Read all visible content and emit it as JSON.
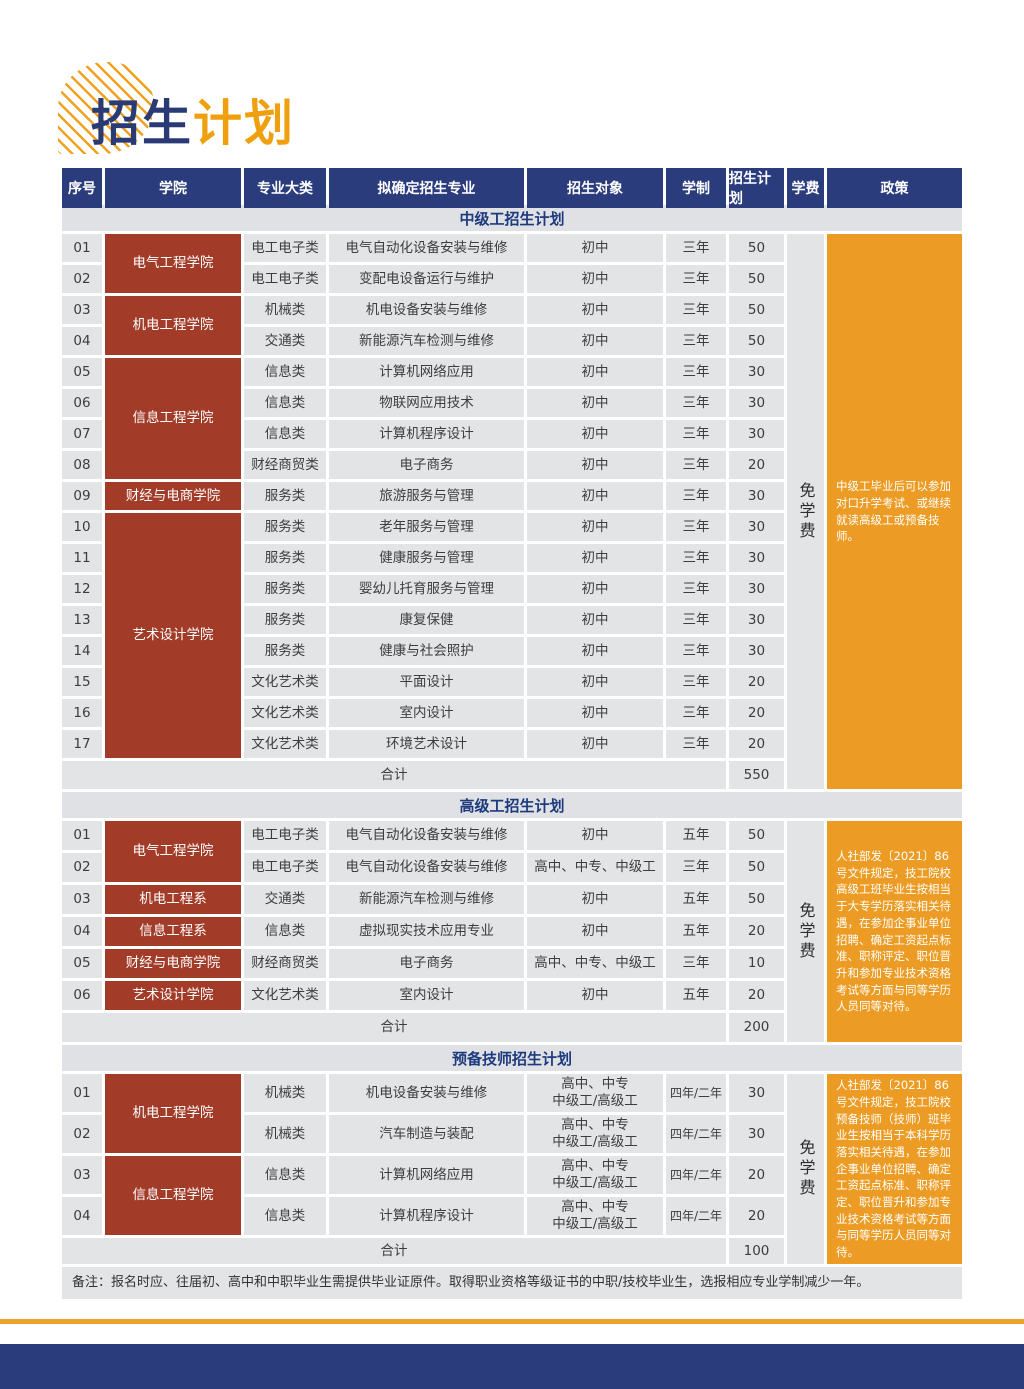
{
  "page": {
    "title_part1": "招生",
    "title_part2": "计划"
  },
  "colors": {
    "navy": "#2B3C7C",
    "brick_red": "#A23B28",
    "orange": "#EC9C24",
    "cell_gray": "#E2E4E6",
    "title_orange": "#F0A00F"
  },
  "table": {
    "headers": [
      "序号",
      "学院",
      "专业大类",
      "拟确定招生专业",
      "招生对象",
      "学制",
      "招生计划",
      "学费",
      "政策"
    ]
  },
  "sections": [
    {
      "title": "中级工招生计划",
      "tuition": "免学费",
      "policy": "中级工毕业后可以参加对口升学考试、或继续就读高级工或预备技师。",
      "total_label": "合计",
      "total": "550",
      "colleges": [
        {
          "name": "电气工程学院",
          "span": 2
        },
        {
          "name": "机电工程学院",
          "span": 2
        },
        {
          "name": "信息工程学院",
          "span": 4
        },
        {
          "name": "财经与电商学院",
          "span": 1
        },
        {
          "name": "艺术设计学院",
          "span": 8
        }
      ],
      "rows": [
        {
          "no": "01",
          "category": "电工电子类",
          "major": "电气自动化设备安装与维修",
          "target": "初中",
          "duration": "三年",
          "plan": "50"
        },
        {
          "no": "02",
          "category": "电工电子类",
          "major": "变配电设备运行与维护",
          "target": "初中",
          "duration": "三年",
          "plan": "50"
        },
        {
          "no": "03",
          "category": "机械类",
          "major": "机电设备安装与维修",
          "target": "初中",
          "duration": "三年",
          "plan": "50"
        },
        {
          "no": "04",
          "category": "交通类",
          "major": "新能源汽车检测与维修",
          "target": "初中",
          "duration": "三年",
          "plan": "50"
        },
        {
          "no": "05",
          "category": "信息类",
          "major": "计算机网络应用",
          "target": "初中",
          "duration": "三年",
          "plan": "30"
        },
        {
          "no": "06",
          "category": "信息类",
          "major": "物联网应用技术",
          "target": "初中",
          "duration": "三年",
          "plan": "30"
        },
        {
          "no": "07",
          "category": "信息类",
          "major": "计算机程序设计",
          "target": "初中",
          "duration": "三年",
          "plan": "30"
        },
        {
          "no": "08",
          "category": "财经商贸类",
          "major": "电子商务",
          "target": "初中",
          "duration": "三年",
          "plan": "20"
        },
        {
          "no": "09",
          "category": "服务类",
          "major": "旅游服务与管理",
          "target": "初中",
          "duration": "三年",
          "plan": "30"
        },
        {
          "no": "10",
          "category": "服务类",
          "major": "老年服务与管理",
          "target": "初中",
          "duration": "三年",
          "plan": "30"
        },
        {
          "no": "11",
          "category": "服务类",
          "major": "健康服务与管理",
          "target": "初中",
          "duration": "三年",
          "plan": "30"
        },
        {
          "no": "12",
          "category": "服务类",
          "major": "婴幼儿托育服务与管理",
          "target": "初中",
          "duration": "三年",
          "plan": "30"
        },
        {
          "no": "13",
          "category": "服务类",
          "major": "康复保健",
          "target": "初中",
          "duration": "三年",
          "plan": "30"
        },
        {
          "no": "14",
          "category": "服务类",
          "major": "健康与社会照护",
          "target": "初中",
          "duration": "三年",
          "plan": "30"
        },
        {
          "no": "15",
          "category": "文化艺术类",
          "major": "平面设计",
          "target": "初中",
          "duration": "三年",
          "plan": "20"
        },
        {
          "no": "16",
          "category": "文化艺术类",
          "major": "室内设计",
          "target": "初中",
          "duration": "三年",
          "plan": "20"
        },
        {
          "no": "17",
          "category": "文化艺术类",
          "major": "环境艺术设计",
          "target": "初中",
          "duration": "三年",
          "plan": "20"
        }
      ]
    },
    {
      "title": "高级工招生计划",
      "tuition": "免学费",
      "policy": "人社部发〔2021〕86号文件规定，技工院校高级工班毕业生按相当于大专学历落实相关待遇，在参加企事业单位招聘、确定工资起点标准、职称评定、职位晋升和参加专业技术资格考试等方面与同等学历人员同等对待。",
      "total_label": "合计",
      "total": "200",
      "colleges": [
        {
          "name": "电气工程学院",
          "span": 2
        },
        {
          "name": "机电工程系",
          "span": 1
        },
        {
          "name": "信息工程系",
          "span": 1
        },
        {
          "name": "财经与电商学院",
          "span": 1
        },
        {
          "name": "艺术设计学院",
          "span": 1
        }
      ],
      "rows": [
        {
          "no": "01",
          "category": "电工电子类",
          "major": "电气自动化设备安装与维修",
          "target": "初中",
          "duration": "五年",
          "plan": "50"
        },
        {
          "no": "02",
          "category": "电工电子类",
          "major": "电气自动化设备安装与维修",
          "target": "高中、中专、中级工",
          "duration": "三年",
          "plan": "50"
        },
        {
          "no": "03",
          "category": "交通类",
          "major": "新能源汽车检测与维修",
          "target": "初中",
          "duration": "五年",
          "plan": "50"
        },
        {
          "no": "04",
          "category": "信息类",
          "major": "虚拟现实技术应用专业",
          "target": "初中",
          "duration": "五年",
          "plan": "20"
        },
        {
          "no": "05",
          "category": "财经商贸类",
          "major": "电子商务",
          "target": "高中、中专、中级工",
          "duration": "三年",
          "plan": "10"
        },
        {
          "no": "06",
          "category": "文化艺术类",
          "major": "室内设计",
          "target": "初中",
          "duration": "五年",
          "plan": "20"
        }
      ]
    },
    {
      "title": "预备技师招生计划",
      "tuition": "免学费",
      "policy": "人社部发〔2021〕86号文件规定，技工院校预备技师（技师）班毕业生按相当于本科学历落实相关待遇，在参加企事业单位招聘、确定工资起点标准、职称评定、职位晋升和参加专业技术资格考试等方面与同等学历人员同等对待。",
      "total_label": "合计",
      "total": "100",
      "colleges": [
        {
          "name": "机电工程学院",
          "span": 2
        },
        {
          "name": "信息工程学院",
          "span": 2
        }
      ],
      "rows": [
        {
          "no": "01",
          "category": "机械类",
          "major": "机电设备安装与维修",
          "target": "高中、中专\n中级工/高级工",
          "duration": "四年/二年",
          "plan": "30"
        },
        {
          "no": "02",
          "category": "机械类",
          "major": "汽车制造与装配",
          "target": "高中、中专\n中级工/高级工",
          "duration": "四年/二年",
          "plan": "30"
        },
        {
          "no": "03",
          "category": "信息类",
          "major": "计算机网络应用",
          "target": "高中、中专\n中级工/高级工",
          "duration": "四年/二年",
          "plan": "20"
        },
        {
          "no": "04",
          "category": "信息类",
          "major": "计算机程序设计",
          "target": "高中、中专\n中级工/高级工",
          "duration": "四年/二年",
          "plan": "20"
        }
      ]
    }
  ],
  "note": "备注：报名时应、往届初、高中和中职毕业生需提供毕业证原件。取得职业资格等级证书的中职/技校毕业生，选报相应专业学制减少一年。"
}
